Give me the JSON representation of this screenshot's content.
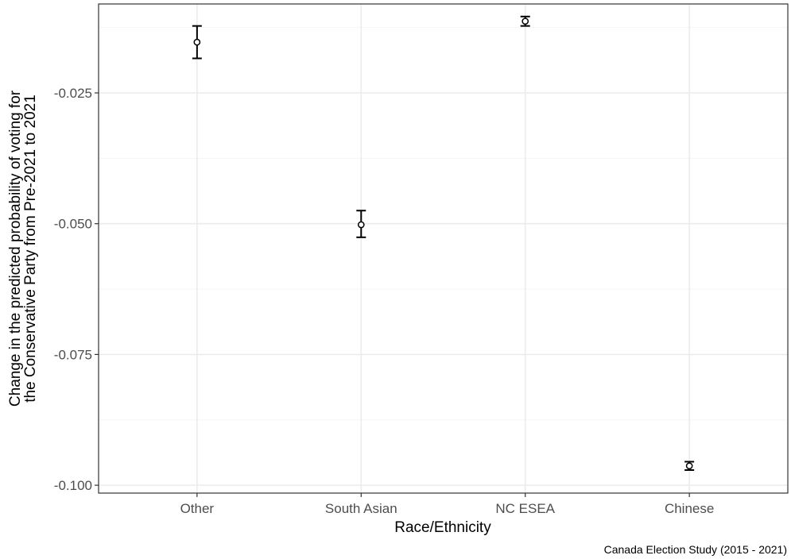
{
  "chart_data": {
    "type": "scatter",
    "subtype": "point-range",
    "categories": [
      "Other",
      "South Asian",
      "NC ESEA",
      "Chinese"
    ],
    "series": [
      {
        "values": [
          -0.0153,
          -0.0502,
          -0.0113,
          -0.0963
        ],
        "lower": [
          -0.0184,
          -0.0526,
          -0.0122,
          -0.0971
        ],
        "upper": [
          -0.0122,
          -0.0475,
          -0.0104,
          -0.0955
        ]
      }
    ],
    "yticks": [
      -0.1,
      -0.075,
      -0.05,
      -0.025
    ],
    "ytick_labels": [
      "-0.100",
      "-0.075",
      "-0.050",
      "-0.025"
    ],
    "ylim": [
      -0.1015,
      -0.008
    ],
    "xlabel": "Race/Ethnicity",
    "ylabel_lines": [
      "Change in the predicted probability of voting for",
      "the Conservative Party from Pre-2021 to 2021"
    ],
    "caption": "Canada Election Study (2015 - 2021)",
    "grid": true,
    "theme": "bw",
    "colors": {
      "grid_major": "#ebebeb",
      "grid_minor": "#f5f5f5",
      "panel_border": "#333333",
      "mark": "#000000",
      "tick_text": "#4d4d4d"
    }
  }
}
